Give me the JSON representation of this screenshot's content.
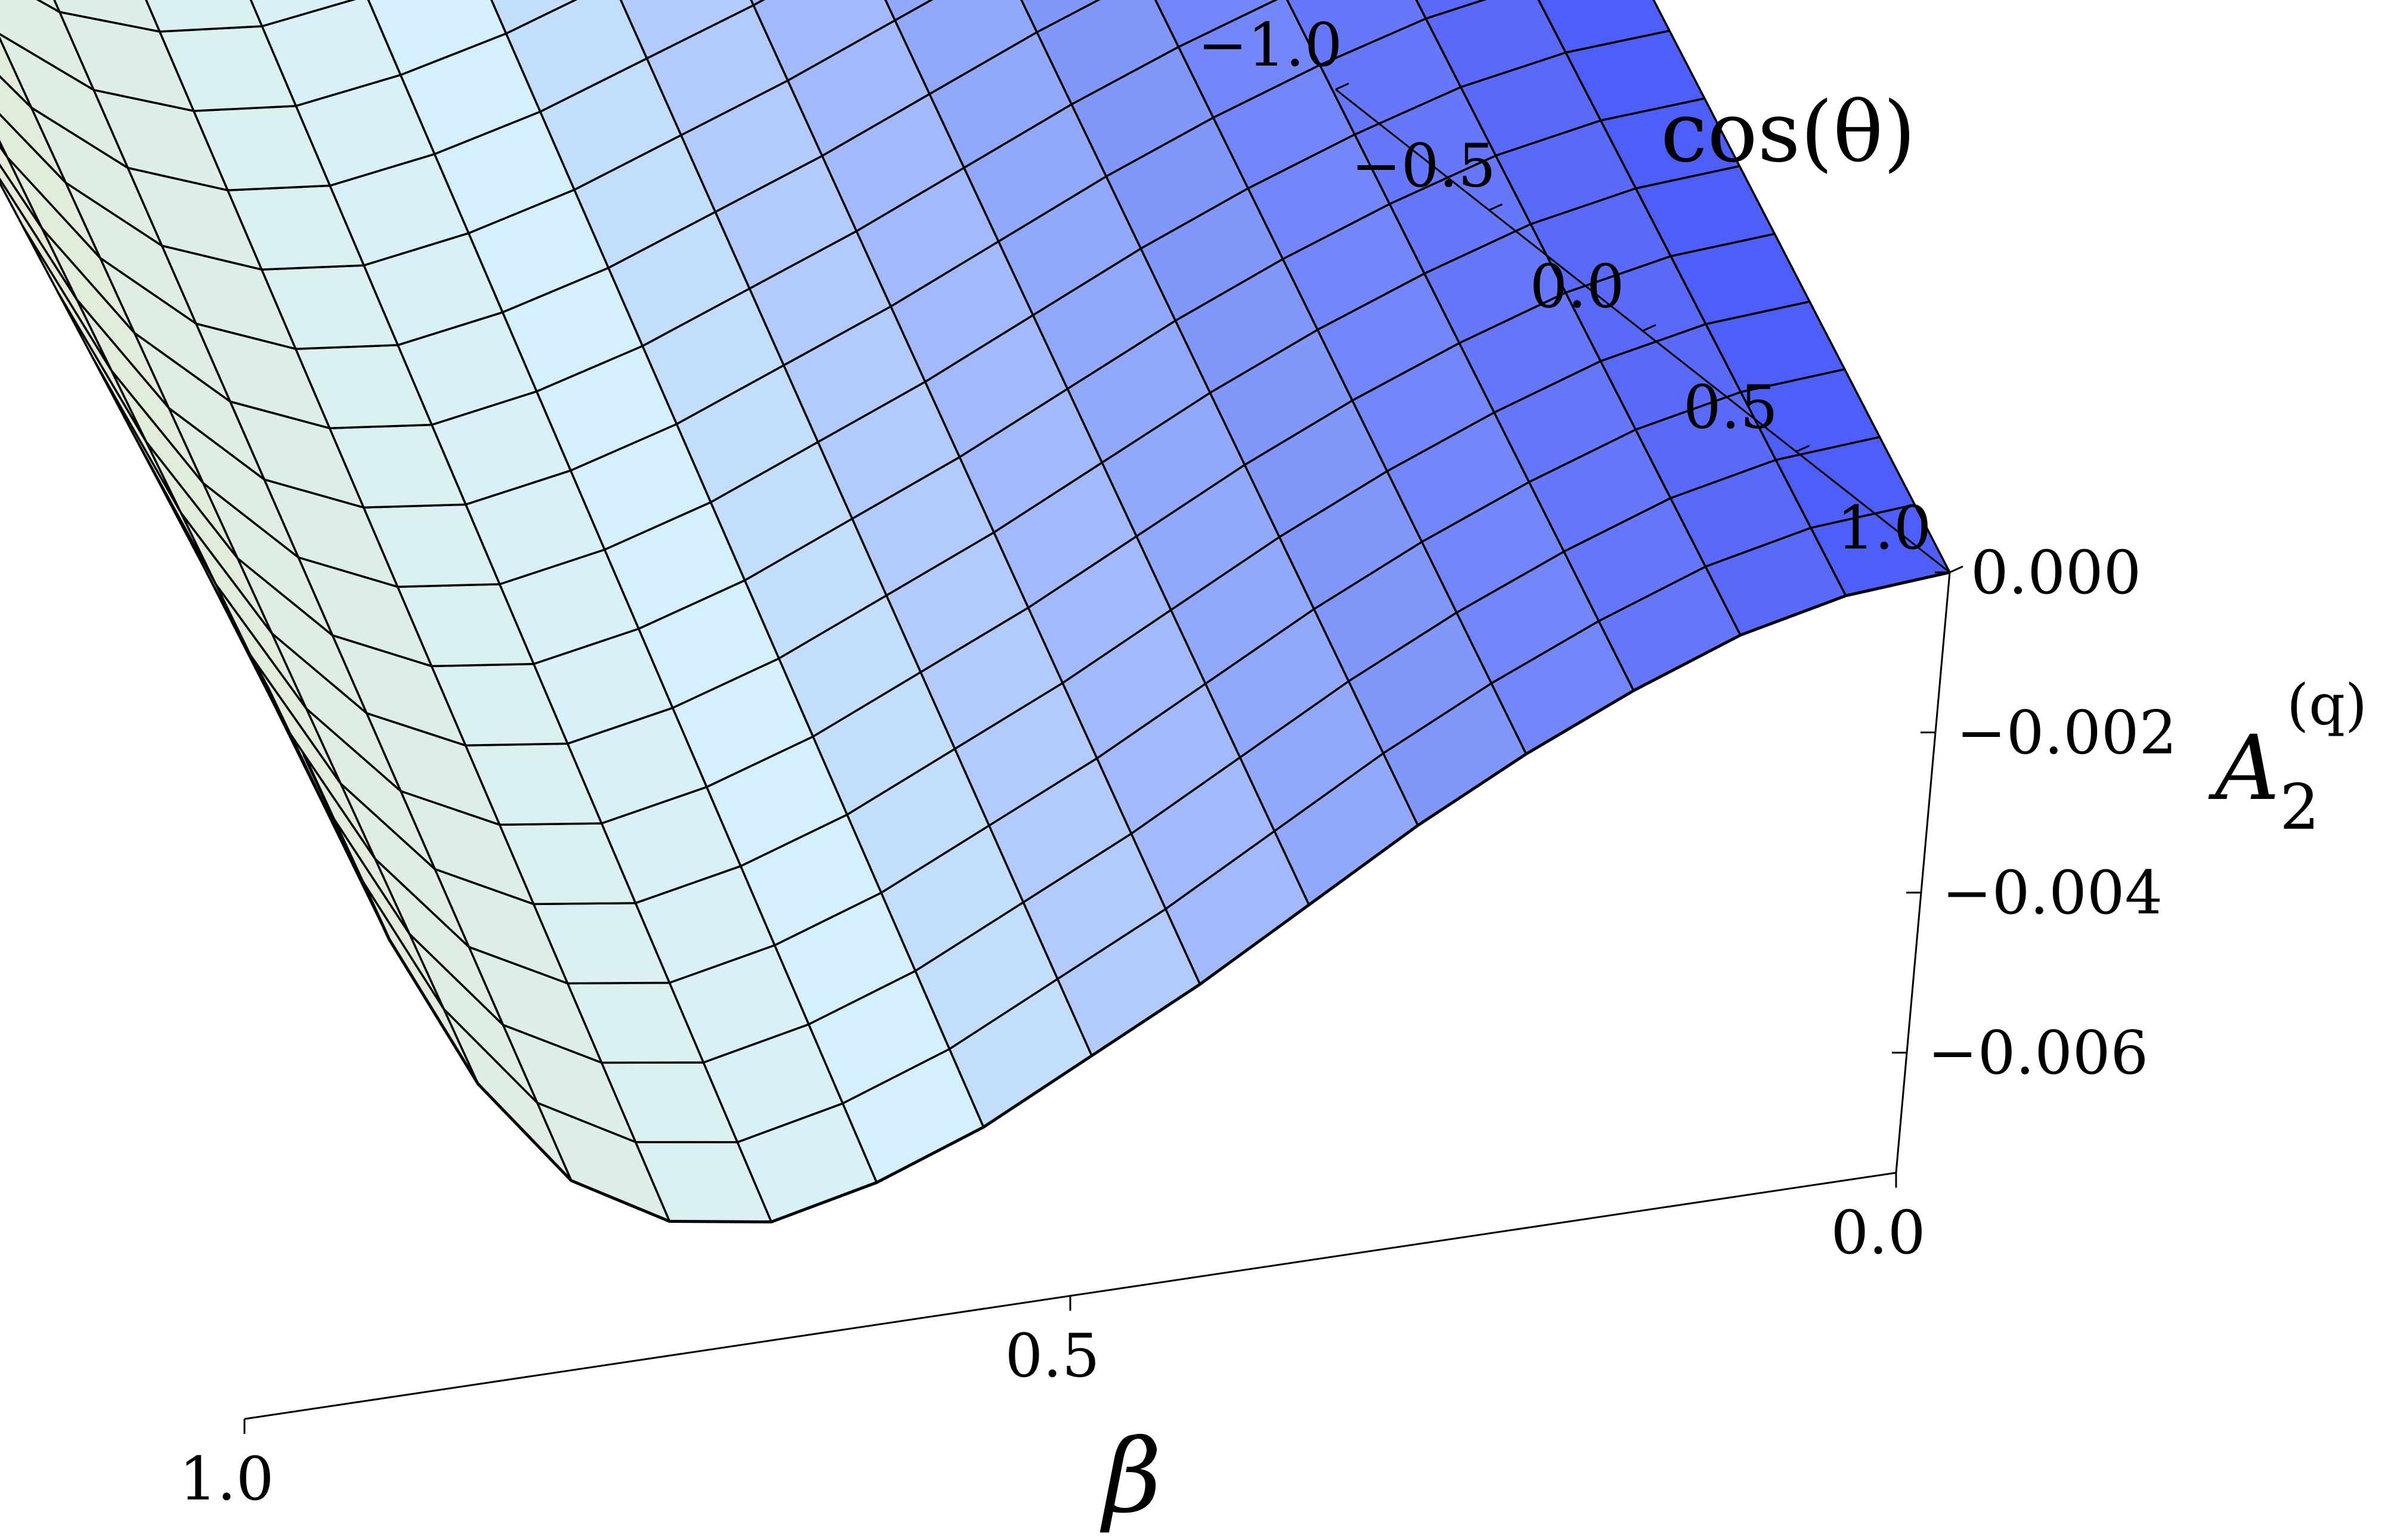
{
  "chart_data": {
    "type": "surface",
    "x_axis": {
      "label": "β",
      "range": [
        0.0,
        1.0
      ],
      "ticks": [
        {
          "value": 0.0,
          "label": "0.0"
        },
        {
          "value": 0.5,
          "label": "0.5"
        },
        {
          "value": 1.0,
          "label": "1.0"
        }
      ]
    },
    "y_axis": {
      "label": "cos(θ)",
      "range": [
        -1.0,
        1.0
      ],
      "ticks": [
        {
          "value": -1.0,
          "label": "−1.0"
        },
        {
          "value": -0.5,
          "label": "−0.5"
        },
        {
          "value": 0.0,
          "label": "0.0"
        },
        {
          "value": 0.5,
          "label": "0.5"
        },
        {
          "value": 1.0,
          "label": "1.0"
        }
      ]
    },
    "z_axis": {
      "label_main": "A",
      "label_sub": "2",
      "label_sup": "(q)",
      "range": [
        -0.0075,
        0.0
      ],
      "ticks": [
        {
          "value": 0.0,
          "label": "0.000"
        },
        {
          "value": -0.002,
          "label": "−0.002"
        },
        {
          "value": -0.004,
          "label": "−0.004"
        },
        {
          "value": -0.006,
          "label": "−0.006"
        }
      ]
    },
    "grid": {
      "beta": [
        0.0,
        0.0625,
        0.125,
        0.1875,
        0.25,
        0.3125,
        0.375,
        0.4375,
        0.5,
        0.5625,
        0.625,
        0.6875,
        0.75,
        0.8125,
        0.875,
        0.9375,
        1.0
      ],
      "cos_theta": [
        -1.0,
        -0.875,
        -0.75,
        -0.625,
        -0.5,
        -0.375,
        -0.25,
        -0.125,
        0.0,
        0.125,
        0.25,
        0.375,
        0.5,
        0.625,
        0.75,
        0.875,
        1.0
      ],
      "values_at_cos_theta_zero": [
        0.0,
        -0.0001,
        -0.0004,
        -0.0009,
        -0.0015,
        -0.0022,
        -0.003,
        -0.0038,
        -0.0045,
        -0.0052,
        -0.0057,
        -0.006,
        -0.0058,
        -0.0051,
        -0.0037,
        -0.0017,
        0.0008
      ],
      "cos_theta_dependence": "weak; surface shallower toward cos(θ) = -1"
    },
    "colors": {
      "low_beta": "#4a5af8",
      "mid_beta": "#d6f2fe",
      "high_beta": "#e6ead0",
      "mesh": "#000000"
    }
  }
}
